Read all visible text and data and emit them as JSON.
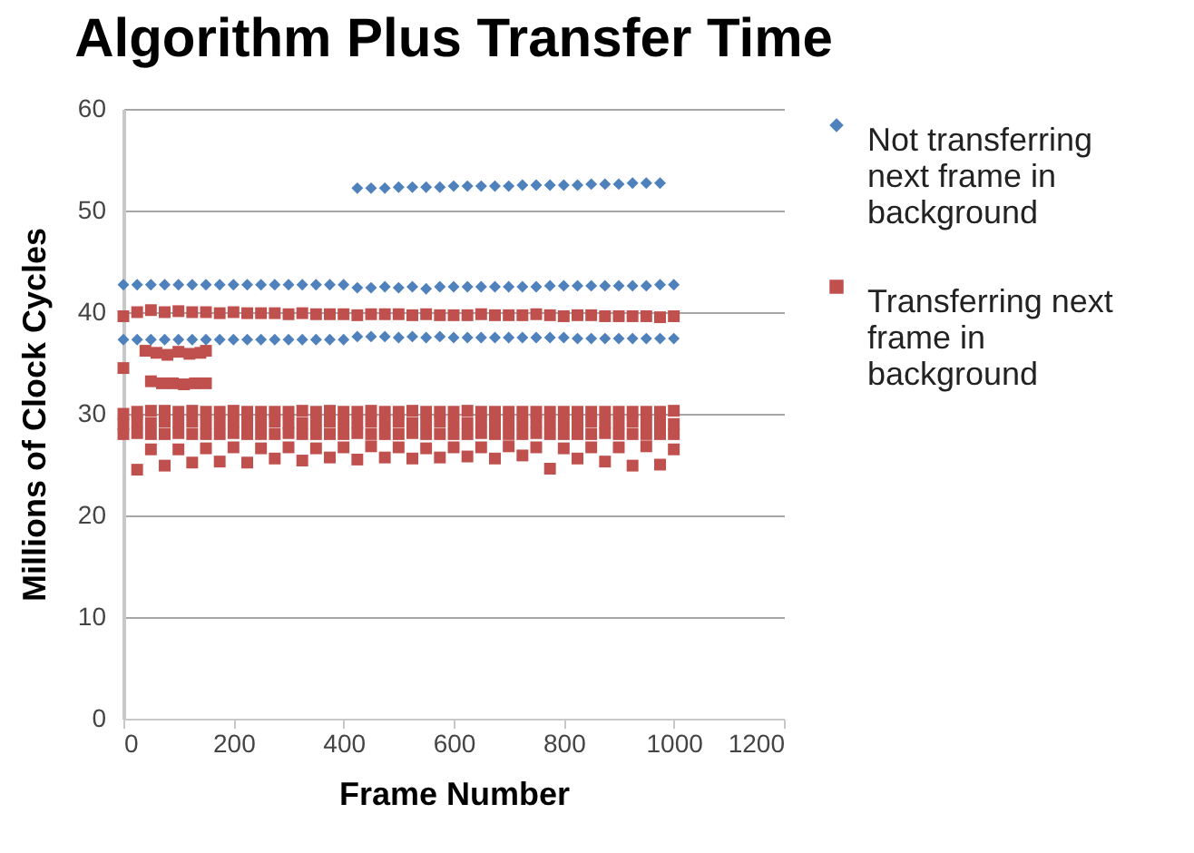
{
  "chart_data": {
    "type": "scatter",
    "title": "Algorithm Plus Transfer Time",
    "xlabel": "Frame Number",
    "ylabel": "Millions of Clock Cycles",
    "xlim": [
      0,
      1200
    ],
    "xticks": [
      0,
      200,
      400,
      600,
      800,
      1000,
      1200
    ],
    "ylim": [
      0,
      60
    ],
    "yticks": [
      0,
      10,
      20,
      30,
      40,
      50,
      60
    ],
    "grid": "y",
    "legend": "right",
    "series": [
      {
        "name": "Not transferring next frame in background",
        "color": "#4f81bd",
        "marker": "diamond",
        "x": [
          0,
          25,
          50,
          75,
          100,
          125,
          150,
          175,
          200,
          225,
          250,
          275,
          300,
          325,
          350,
          375,
          400,
          425,
          450,
          475,
          500,
          525,
          550,
          575,
          600,
          625,
          650,
          675,
          700,
          725,
          750,
          775,
          800,
          825,
          850,
          875,
          900,
          925,
          950,
          975,
          1000,
          0,
          25,
          50,
          75,
          100,
          125,
          150,
          175,
          200,
          225,
          250,
          275,
          300,
          325,
          350,
          375,
          400,
          425,
          450,
          475,
          500,
          525,
          550,
          575,
          600,
          625,
          650,
          675,
          700,
          725,
          750,
          775,
          800,
          825,
          850,
          875,
          900,
          925,
          950,
          975,
          1000,
          425,
          450,
          475,
          500,
          525,
          550,
          575,
          600,
          625,
          650,
          675,
          700,
          725,
          750,
          775,
          800,
          825,
          850,
          875,
          900,
          925,
          950,
          975
        ],
        "values": [
          42.7,
          42.7,
          42.7,
          42.7,
          42.7,
          42.7,
          42.7,
          42.7,
          42.7,
          42.7,
          42.7,
          42.7,
          42.7,
          42.7,
          42.7,
          42.7,
          42.7,
          42.4,
          42.4,
          42.5,
          42.4,
          42.5,
          42.3,
          42.5,
          42.5,
          42.5,
          42.5,
          42.5,
          42.5,
          42.5,
          42.5,
          42.6,
          42.6,
          42.6,
          42.6,
          42.6,
          42.6,
          42.6,
          42.6,
          42.7,
          42.7,
          37.3,
          37.3,
          37.3,
          37.3,
          37.3,
          37.3,
          37.3,
          37.3,
          37.3,
          37.3,
          37.3,
          37.3,
          37.3,
          37.3,
          37.3,
          37.3,
          37.3,
          37.6,
          37.6,
          37.6,
          37.5,
          37.6,
          37.5,
          37.6,
          37.5,
          37.5,
          37.5,
          37.5,
          37.5,
          37.5,
          37.5,
          37.5,
          37.5,
          37.4,
          37.4,
          37.4,
          37.4,
          37.4,
          37.4,
          37.4,
          37.4,
          52.2,
          52.2,
          52.2,
          52.3,
          52.3,
          52.3,
          52.3,
          52.4,
          52.4,
          52.4,
          52.4,
          52.4,
          52.5,
          52.5,
          52.5,
          52.5,
          52.5,
          52.6,
          52.6,
          52.6,
          52.7,
          52.7,
          52.7
        ]
      },
      {
        "name": "Transferring next frame in background",
        "color": "#c0504d",
        "marker": "square",
        "x": [
          0,
          25,
          50,
          75,
          100,
          125,
          150,
          175,
          200,
          225,
          250,
          275,
          300,
          325,
          350,
          375,
          400,
          425,
          450,
          475,
          500,
          525,
          550,
          575,
          600,
          625,
          650,
          675,
          700,
          725,
          750,
          775,
          800,
          825,
          850,
          875,
          900,
          925,
          950,
          975,
          1000,
          40,
          60,
          80,
          100,
          120,
          140,
          150,
          50,
          70,
          90,
          110,
          130,
          150,
          0,
          0,
          25,
          50,
          75,
          100,
          125,
          150,
          175,
          200,
          225,
          250,
          275,
          300,
          325,
          350,
          375,
          400,
          425,
          450,
          475,
          500,
          525,
          550,
          575,
          600,
          625,
          650,
          675,
          700,
          725,
          750,
          775,
          800,
          825,
          850,
          875,
          900,
          925,
          950,
          975,
          1000,
          0,
          25,
          50,
          75,
          100,
          125,
          150,
          175,
          200,
          225,
          250,
          275,
          300,
          325,
          350,
          375,
          400,
          425,
          450,
          475,
          500,
          525,
          550,
          575,
          600,
          625,
          650,
          675,
          700,
          725,
          750,
          775,
          800,
          825,
          850,
          875,
          900,
          925,
          950,
          975,
          1000,
          0,
          25,
          50,
          75,
          100,
          125,
          150,
          175,
          200,
          225,
          250,
          275,
          300,
          325,
          350,
          375,
          400,
          425,
          450,
          475,
          500,
          525,
          550,
          575,
          600,
          625,
          650,
          675,
          700,
          725,
          750,
          775,
          800,
          825,
          850,
          875,
          900,
          925,
          950,
          975,
          1000,
          50,
          100,
          150,
          200,
          250,
          300,
          350,
          400,
          450,
          500,
          550,
          600,
          650,
          700,
          750,
          800,
          850,
          900,
          950,
          1000,
          25,
          75,
          125,
          175,
          225,
          275,
          325,
          375,
          425,
          475,
          525,
          575,
          625,
          675,
          725,
          775,
          825,
          875,
          925,
          975
        ],
        "values": [
          39.6,
          40.0,
          40.2,
          40.0,
          40.1,
          40.0,
          40.0,
          39.9,
          40.0,
          39.9,
          39.9,
          39.9,
          39.8,
          39.9,
          39.8,
          39.8,
          39.8,
          39.7,
          39.8,
          39.8,
          39.8,
          39.7,
          39.8,
          39.7,
          39.7,
          39.7,
          39.8,
          39.7,
          39.7,
          39.7,
          39.8,
          39.7,
          39.6,
          39.7,
          39.7,
          39.6,
          39.6,
          39.6,
          39.6,
          39.5,
          39.6,
          36.2,
          36.0,
          35.8,
          36.1,
          35.9,
          36.0,
          36.2,
          33.2,
          33.0,
          33.0,
          32.9,
          33.0,
          33.0,
          34.5,
          30.0,
          30.2,
          30.3,
          30.3,
          30.2,
          30.3,
          30.2,
          30.2,
          30.3,
          30.2,
          30.2,
          30.2,
          30.2,
          30.3,
          30.2,
          30.3,
          30.2,
          30.2,
          30.3,
          30.2,
          30.2,
          30.3,
          30.2,
          30.2,
          30.2,
          30.3,
          30.2,
          30.2,
          30.2,
          30.2,
          30.2,
          30.2,
          30.2,
          30.2,
          30.2,
          30.2,
          30.2,
          30.2,
          30.2,
          30.2,
          30.3,
          29.0,
          29.2,
          29.1,
          29.2,
          29.1,
          29.2,
          29.1,
          29.1,
          29.2,
          29.1,
          29.1,
          29.2,
          29.1,
          29.1,
          29.1,
          29.2,
          29.1,
          29.1,
          29.2,
          29.1,
          29.2,
          29.1,
          29.1,
          29.2,
          29.1,
          29.1,
          29.2,
          29.1,
          29.1,
          29.1,
          29.2,
          29.1,
          29.1,
          29.1,
          29.2,
          29.1,
          29.1,
          29.2,
          29.1,
          29.1,
          29.0,
          28.0,
          28.1,
          28.0,
          28.0,
          28.1,
          28.0,
          28.0,
          28.0,
          28.1,
          28.0,
          28.0,
          28.0,
          28.1,
          28.0,
          28.0,
          28.0,
          28.0,
          28.1,
          28.0,
          28.0,
          28.0,
          28.1,
          28.0,
          28.0,
          28.0,
          28.0,
          28.1,
          28.0,
          28.0,
          28.0,
          28.1,
          28.0,
          28.0,
          28.0,
          28.0,
          28.1,
          28.0,
          28.0,
          28.0,
          28.0,
          28.0,
          26.5,
          26.5,
          26.6,
          26.7,
          26.6,
          26.7,
          26.6,
          26.7,
          26.8,
          26.7,
          26.6,
          26.7,
          26.7,
          26.8,
          26.7,
          26.6,
          26.7,
          26.7,
          26.8,
          26.5,
          24.5,
          24.9,
          25.2,
          25.3,
          25.2,
          25.6,
          25.4,
          25.7,
          25.5,
          25.7,
          25.6,
          25.7,
          25.8,
          25.6,
          25.9,
          24.6,
          25.6,
          25.3,
          24.9,
          25.0
        ]
      }
    ]
  }
}
